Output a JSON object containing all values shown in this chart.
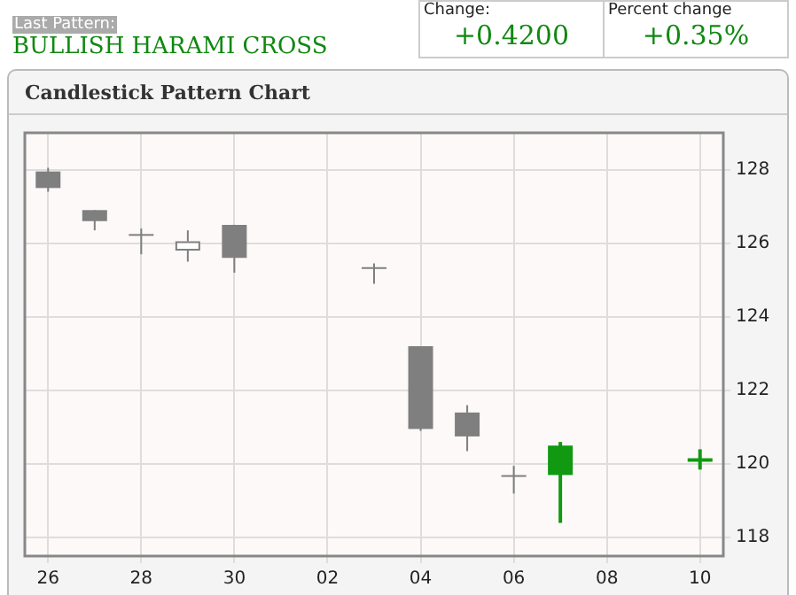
{
  "chart_data": {
    "type": "candlestick",
    "title": "Candlestick Pattern Chart",
    "annotations": [
      "Last Pattern:",
      "BULLISH HARAMI CROSS",
      "Change:",
      "+0.4200",
      "Percent change",
      "+0.35%"
    ],
    "x": [
      "--09-26",
      "--09-27",
      "--09-28",
      "--09-29",
      "--09-30",
      "--10-03",
      "--10-04",
      "--10-05",
      "--10-06",
      "--10-07",
      "--10-10"
    ],
    "ohlc": [
      [
        127.95,
        128.05,
        127.4,
        127.5
      ],
      [
        126.9,
        126.9,
        126.35,
        126.6
      ],
      [
        126.25,
        126.4,
        125.7,
        126.2
      ],
      [
        125.8,
        126.35,
        125.5,
        126.05
      ],
      [
        126.5,
        126.5,
        125.2,
        125.6
      ],
      [
        125.35,
        125.45,
        124.9,
        125.3
      ],
      [
        123.2,
        123.2,
        120.9,
        120.95
      ],
      [
        121.4,
        121.6,
        120.35,
        120.75
      ],
      [
        119.7,
        119.95,
        119.2,
        119.65
      ],
      [
        120.5,
        120.6,
        118.4,
        119.7
      ],
      [
        120.1,
        120.4,
        119.85,
        120.12
      ]
    ],
    "colors": [
      "#7f7f7f",
      "#7f7f7f",
      "#7f7f7f",
      "#ffffff",
      "#7f7f7f",
      "#7f7f7f",
      "#7f7f7f",
      "#7f7f7f",
      "#7f7f7f",
      "#119911",
      "#119911"
    ],
    "xlim": [
      "--09-25T12:00",
      "--10-10T12:00"
    ],
    "xticks": [
      {
        "value": "--09-26",
        "label": "26"
      },
      {
        "value": "--09-28",
        "label": "28"
      },
      {
        "value": "--09-30",
        "label": "30"
      },
      {
        "value": "--10-02",
        "label": "02"
      },
      {
        "value": "--10-04",
        "label": "04"
      },
      {
        "value": "--10-06",
        "label": "06"
      },
      {
        "value": "--10-08",
        "label": "08"
      },
      {
        "value": "--10-10",
        "label": "10"
      }
    ],
    "ylim": [
      117.5,
      129
    ],
    "yticks": [
      118,
      120,
      122,
      124,
      126,
      128
    ],
    "grid": true,
    "legend": false
  }
}
